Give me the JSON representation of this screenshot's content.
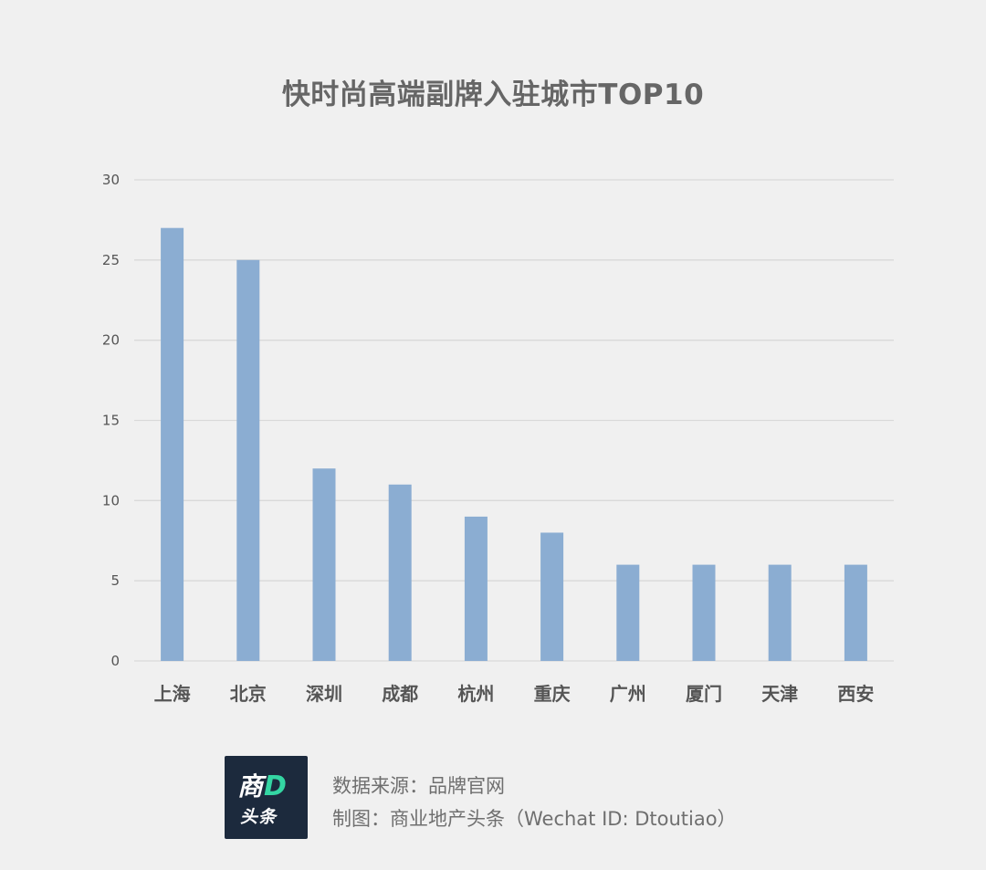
{
  "chart_data": {
    "type": "bar",
    "title": "快时尚高端副牌入驻城市TOP10",
    "categories": [
      "上海",
      "北京",
      "深圳",
      "成都",
      "杭州",
      "重庆",
      "广州",
      "厦门",
      "天津",
      "西安"
    ],
    "values": [
      27,
      25,
      12,
      11,
      9,
      8,
      6,
      6,
      6,
      6
    ],
    "ylim": [
      0,
      30
    ],
    "yticks": [
      0,
      5,
      10,
      15,
      20,
      25,
      30
    ],
    "xlabel": "",
    "ylabel": "",
    "grid": true,
    "colors": {
      "bar": "#8badd2",
      "grid": "#d9d9d9"
    }
  },
  "footer": {
    "logo_char": "商",
    "logo_letter": "D",
    "logo_sub": "头条",
    "source_line": "数据来源：品牌官网",
    "maker_line": "制图：商业地产头条（Wechat ID: Dtoutiao）"
  }
}
